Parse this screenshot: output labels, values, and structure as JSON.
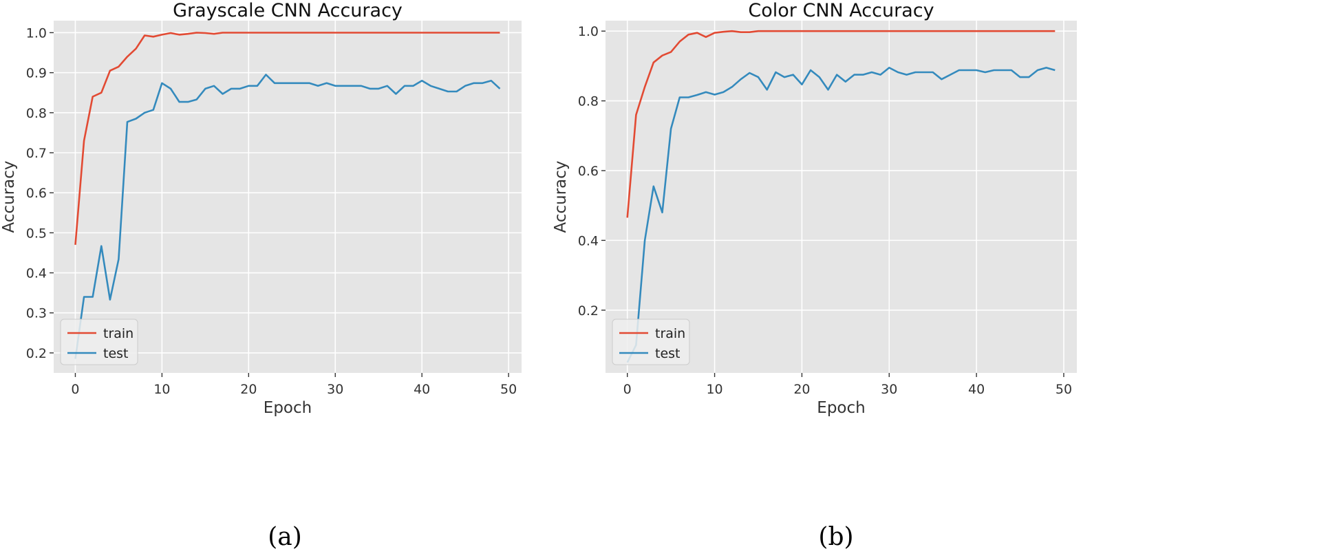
{
  "figure": {
    "captions": [
      "(a)",
      "(b)"
    ]
  },
  "colors": {
    "train": "#e24a33",
    "test": "#348abd",
    "plot_bg": "#e5e5e5",
    "grid": "#ffffff",
    "text": "#333333"
  },
  "chart_data": [
    {
      "type": "line",
      "title": "Grayscale CNN Accuracy",
      "xlabel": "Epoch",
      "ylabel": "Accuracy",
      "xlim": [
        -2.5,
        51.5
      ],
      "ylim": [
        0.15,
        1.03
      ],
      "xticks": [
        0,
        10,
        20,
        30,
        40,
        50
      ],
      "yticks": [
        0.2,
        0.3,
        0.4,
        0.5,
        0.6,
        0.7,
        0.8,
        0.9,
        1.0
      ],
      "ytick_labels": [
        "0.2",
        "0.3",
        "0.4",
        "0.5",
        "0.6",
        "0.7",
        "0.8",
        "0.9",
        "1.0"
      ],
      "grid": true,
      "legend_position": "lower-left",
      "x": [
        0,
        1,
        2,
        3,
        4,
        5,
        6,
        7,
        8,
        9,
        10,
        11,
        12,
        13,
        14,
        15,
        16,
        17,
        18,
        19,
        20,
        21,
        22,
        23,
        24,
        25,
        26,
        27,
        28,
        29,
        30,
        31,
        32,
        33,
        34,
        35,
        36,
        37,
        38,
        39,
        40,
        41,
        42,
        43,
        44,
        45,
        46,
        47,
        48,
        49
      ],
      "series": [
        {
          "name": "train",
          "color": "#e24a33",
          "values": [
            0.47,
            0.73,
            0.84,
            0.85,
            0.905,
            0.915,
            0.94,
            0.96,
            0.993,
            0.99,
            0.995,
            0.999,
            0.995,
            0.997,
            1.0,
            0.999,
            0.997,
            1.0,
            1.0,
            1.0,
            1.0,
            1.0,
            1.0,
            1.0,
            1.0,
            1.0,
            1.0,
            1.0,
            1.0,
            1.0,
            1.0,
            1.0,
            1.0,
            1.0,
            1.0,
            1.0,
            1.0,
            1.0,
            1.0,
            1.0,
            1.0,
            1.0,
            1.0,
            1.0,
            1.0,
            1.0,
            1.0,
            1.0,
            1.0,
            1.0
          ]
        },
        {
          "name": "test",
          "color": "#348abd",
          "values": [
            0.185,
            0.34,
            0.34,
            0.467,
            0.333,
            0.434,
            0.777,
            0.785,
            0.8,
            0.807,
            0.874,
            0.86,
            0.827,
            0.827,
            0.833,
            0.86,
            0.867,
            0.847,
            0.86,
            0.86,
            0.867,
            0.867,
            0.895,
            0.874,
            0.874,
            0.874,
            0.874,
            0.874,
            0.867,
            0.874,
            0.867,
            0.867,
            0.867,
            0.867,
            0.86,
            0.86,
            0.867,
            0.847,
            0.867,
            0.867,
            0.88,
            0.867,
            0.86,
            0.853,
            0.853,
            0.867,
            0.874,
            0.874,
            0.88,
            0.86
          ]
        }
      ]
    },
    {
      "type": "line",
      "title": "Color CNN Accuracy",
      "xlabel": "Epoch",
      "ylabel": "Accuracy",
      "xlim": [
        -2.5,
        51.5
      ],
      "ylim": [
        0.02,
        1.03
      ],
      "xticks": [
        0,
        10,
        20,
        30,
        40,
        50
      ],
      "yticks": [
        0.2,
        0.4,
        0.6,
        0.8,
        1.0
      ],
      "ytick_labels": [
        "0.2",
        "0.4",
        "0.6",
        "0.8",
        "1.0"
      ],
      "grid": true,
      "legend_position": "lower-left",
      "x": [
        0,
        1,
        2,
        3,
        4,
        5,
        6,
        7,
        8,
        9,
        10,
        11,
        12,
        13,
        14,
        15,
        16,
        17,
        18,
        19,
        20,
        21,
        22,
        23,
        24,
        25,
        26,
        27,
        28,
        29,
        30,
        31,
        32,
        33,
        34,
        35,
        36,
        37,
        38,
        39,
        40,
        41,
        42,
        43,
        44,
        45,
        46,
        47,
        48,
        49
      ],
      "series": [
        {
          "name": "train",
          "color": "#e24a33",
          "values": [
            0.465,
            0.76,
            0.84,
            0.91,
            0.93,
            0.94,
            0.97,
            0.99,
            0.995,
            0.983,
            0.995,
            0.998,
            1.0,
            0.997,
            0.997,
            1.0,
            1.0,
            1.0,
            1.0,
            1.0,
            1.0,
            1.0,
            1.0,
            1.0,
            1.0,
            1.0,
            1.0,
            1.0,
            1.0,
            1.0,
            1.0,
            1.0,
            1.0,
            1.0,
            1.0,
            1.0,
            1.0,
            1.0,
            1.0,
            1.0,
            1.0,
            1.0,
            1.0,
            1.0,
            1.0,
            1.0,
            1.0,
            1.0,
            1.0,
            1.0
          ]
        },
        {
          "name": "test",
          "color": "#348abd",
          "values": [
            0.05,
            0.1,
            0.4,
            0.555,
            0.48,
            0.72,
            0.81,
            0.81,
            0.817,
            0.825,
            0.818,
            0.825,
            0.84,
            0.862,
            0.88,
            0.868,
            0.832,
            0.882,
            0.868,
            0.875,
            0.847,
            0.888,
            0.868,
            0.832,
            0.875,
            0.855,
            0.875,
            0.875,
            0.882,
            0.875,
            0.895,
            0.882,
            0.875,
            0.882,
            0.882,
            0.882,
            0.862,
            0.875,
            0.888,
            0.888,
            0.888,
            0.882,
            0.888,
            0.888,
            0.888,
            0.868,
            0.868,
            0.888,
            0.895,
            0.888
          ]
        }
      ]
    }
  ]
}
